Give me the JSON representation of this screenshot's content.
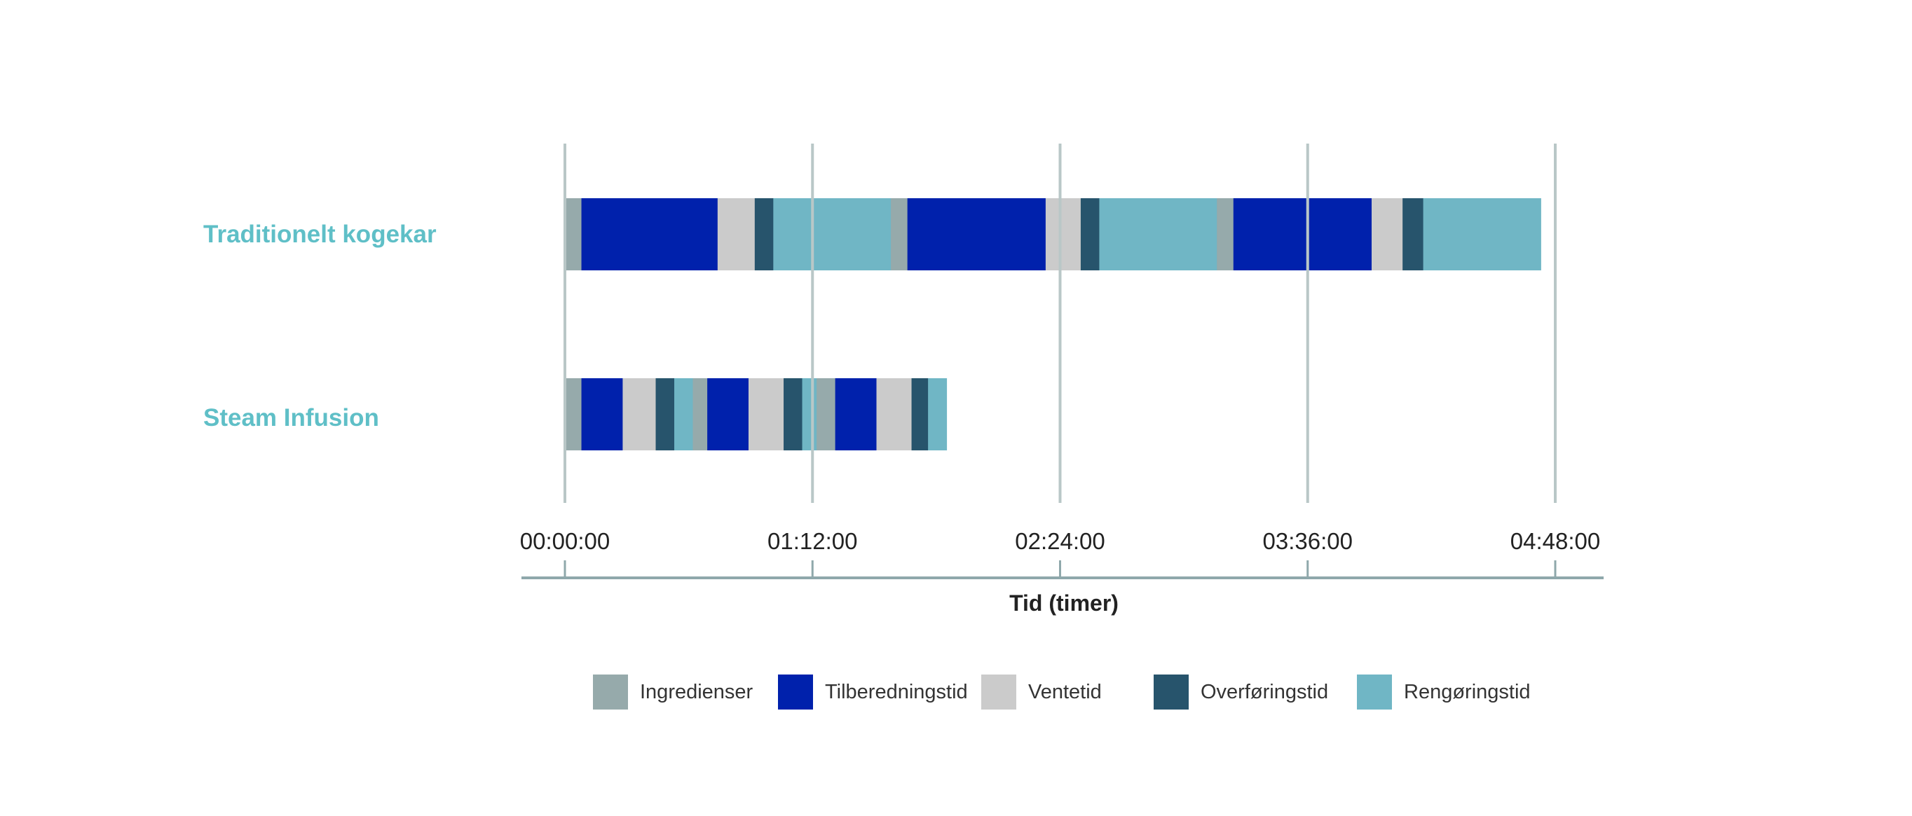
{
  "chart_data": {
    "type": "bar",
    "orientation": "horizontal-stacked-timeline",
    "title": "",
    "xlabel": "Tid (timer)",
    "ylabel": "",
    "x_unit": "hours",
    "xlim": [
      0,
      4.8
    ],
    "x_ticks": [
      0,
      1.2,
      2.4,
      3.6,
      4.8
    ],
    "x_tick_labels": [
      "00:00:00",
      "01:12:00",
      "02:24:00",
      "03:36:00",
      "04:48:00"
    ],
    "grid": "vertical",
    "legend_position": "bottom",
    "categories": [
      "Traditionelt kogekar",
      "Steam Infusion"
    ],
    "legend": [
      {
        "key": "ing",
        "label": "Ingredienser",
        "color": "#96aaab"
      },
      {
        "key": "cook",
        "label": "Tilberedningstid",
        "color": "#0021ac"
      },
      {
        "key": "wait",
        "label": "Ventetid",
        "color": "#cbcbcb"
      },
      {
        "key": "transfer",
        "label": "Overføringstid",
        "color": "#27546c"
      },
      {
        "key": "clean",
        "label": "Rengøringstid",
        "color": "#70b6c5"
      }
    ],
    "series": [
      {
        "category": "Traditionelt kogekar",
        "segments": [
          {
            "type": "ing",
            "start": 0.0,
            "end": 0.08
          },
          {
            "type": "cook",
            "start": 0.08,
            "end": 0.74
          },
          {
            "type": "wait",
            "start": 0.74,
            "end": 0.92
          },
          {
            "type": "transfer",
            "start": 0.92,
            "end": 1.01
          },
          {
            "type": "clean",
            "start": 1.01,
            "end": 1.58
          },
          {
            "type": "ing",
            "start": 1.58,
            "end": 1.66
          },
          {
            "type": "cook",
            "start": 1.66,
            "end": 2.33
          },
          {
            "type": "wait",
            "start": 2.33,
            "end": 2.5
          },
          {
            "type": "transfer",
            "start": 2.5,
            "end": 2.59
          },
          {
            "type": "clean",
            "start": 2.59,
            "end": 3.16
          },
          {
            "type": "ing",
            "start": 3.16,
            "end": 3.24
          },
          {
            "type": "cook",
            "start": 3.24,
            "end": 3.91
          },
          {
            "type": "wait",
            "start": 3.91,
            "end": 4.06
          },
          {
            "type": "transfer",
            "start": 4.06,
            "end": 4.16
          },
          {
            "type": "clean",
            "start": 4.16,
            "end": 4.73
          }
        ]
      },
      {
        "category": "Steam Infusion",
        "segments": [
          {
            "type": "ing",
            "start": 0.0,
            "end": 0.08
          },
          {
            "type": "cook",
            "start": 0.08,
            "end": 0.28
          },
          {
            "type": "wait",
            "start": 0.28,
            "end": 0.44
          },
          {
            "type": "transfer",
            "start": 0.44,
            "end": 0.53
          },
          {
            "type": "clean",
            "start": 0.53,
            "end": 0.62
          },
          {
            "type": "ing",
            "start": 0.62,
            "end": 0.69
          },
          {
            "type": "cook",
            "start": 0.69,
            "end": 0.89
          },
          {
            "type": "wait",
            "start": 0.89,
            "end": 1.06
          },
          {
            "type": "transfer",
            "start": 1.06,
            "end": 1.15
          },
          {
            "type": "clean",
            "start": 1.15,
            "end": 1.22
          },
          {
            "type": "ing",
            "start": 1.22,
            "end": 1.31
          },
          {
            "type": "cook",
            "start": 1.31,
            "end": 1.51
          },
          {
            "type": "wait",
            "start": 1.51,
            "end": 1.68
          },
          {
            "type": "transfer",
            "start": 1.68,
            "end": 1.76
          },
          {
            "type": "clean",
            "start": 1.76,
            "end": 1.85
          }
        ]
      }
    ],
    "colors": {
      "row_label": "#5fbfc7",
      "grid": "#b9c7c7",
      "axis": "#8fa8ab"
    }
  }
}
